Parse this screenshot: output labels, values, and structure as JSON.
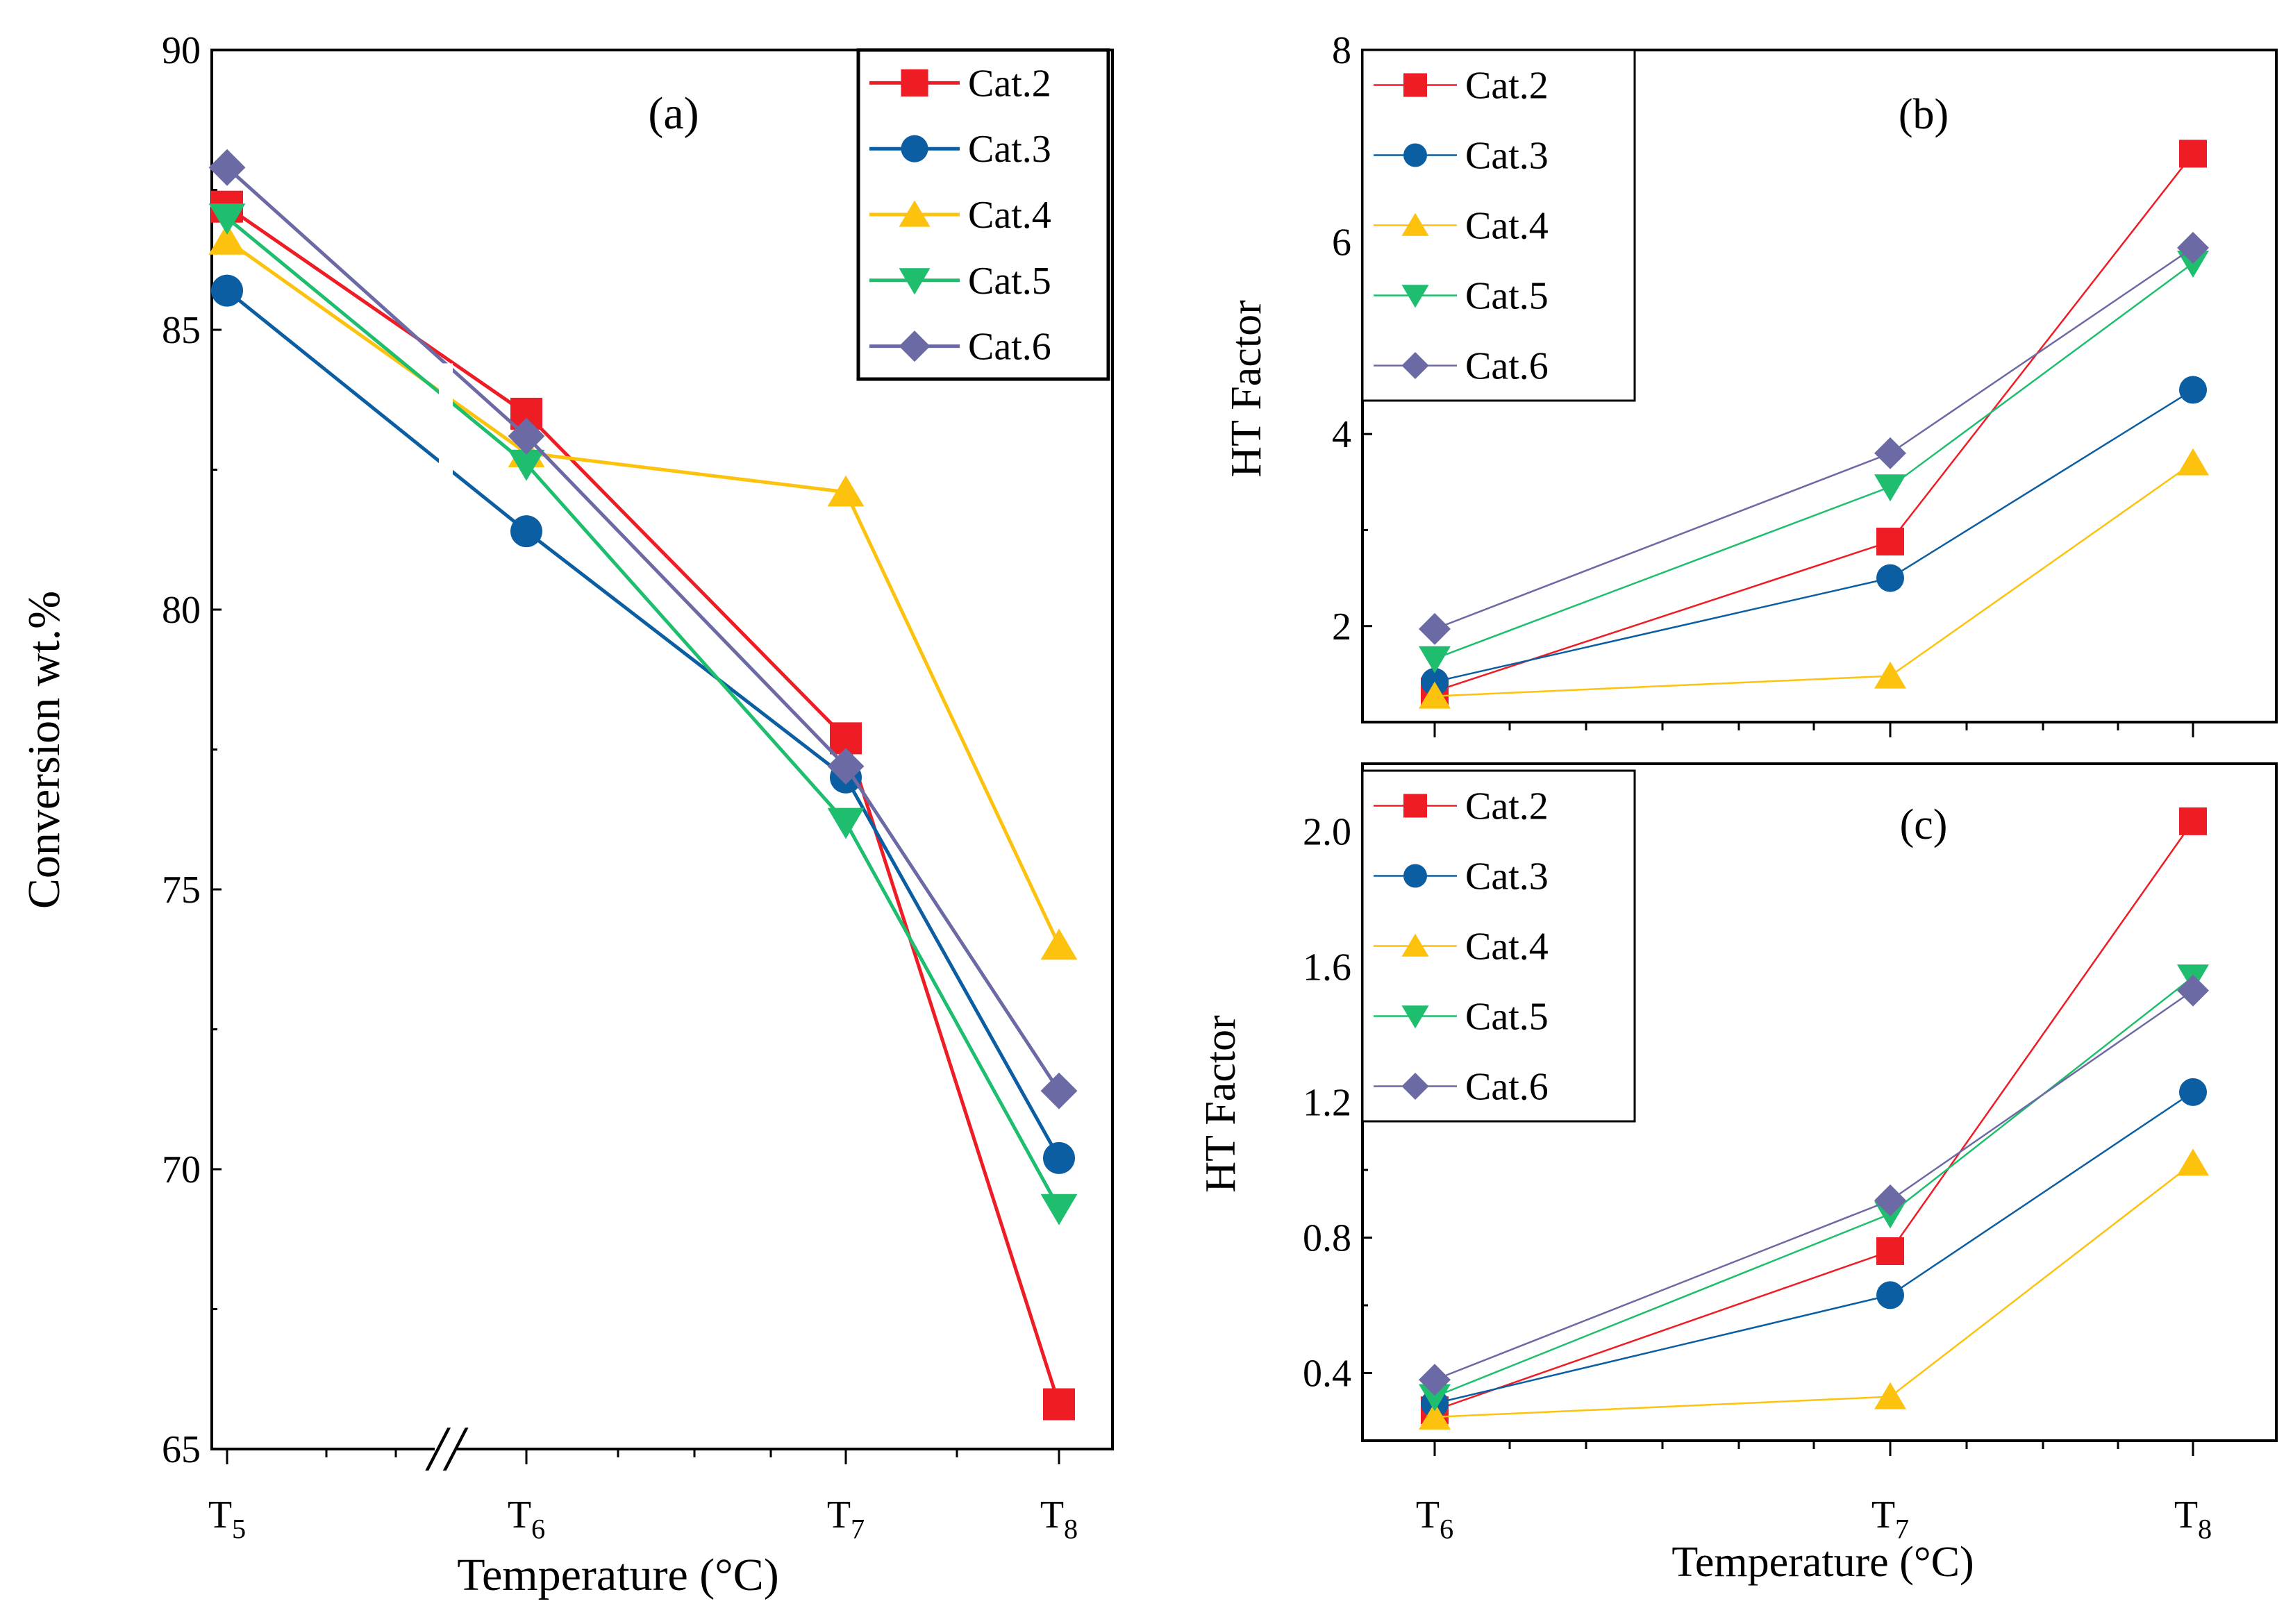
{
  "chart_data": [
    {
      "type": "line",
      "panel_label": "(a)",
      "xlabel": "Temperature (°C)",
      "ylabel": "Conversion wt.%",
      "categories": [
        {
          "main": "T",
          "sub": "5"
        },
        {
          "main": "T",
          "sub": "6"
        },
        {
          "main": "T",
          "sub": "7"
        },
        {
          "main": "T",
          "sub": "8"
        }
      ],
      "ylim": [
        65,
        90
      ],
      "yticks": [
        65,
        70,
        75,
        80,
        85,
        90
      ],
      "axis_break": "//",
      "legend_position": "top-right",
      "series": [
        {
          "name": "Cat.2",
          "marker": "square",
          "color": "#ee1c25",
          "values": [
            87.2,
            83.5,
            77.7,
            65.8
          ]
        },
        {
          "name": "Cat.3",
          "marker": "circle",
          "color": "#0b5ea1",
          "values": [
            85.7,
            81.4,
            77.0,
            70.2
          ]
        },
        {
          "name": "Cat.4",
          "marker": "triangle-up",
          "color": "#fcc20e",
          "values": [
            86.6,
            82.8,
            82.1,
            74.0
          ]
        },
        {
          "name": "Cat.5",
          "marker": "triangle-down",
          "color": "#1fbe6f",
          "values": [
            87.0,
            82.6,
            76.2,
            69.3
          ]
        },
        {
          "name": "Cat.6",
          "marker": "diamond",
          "color": "#6c6aa4",
          "values": [
            87.9,
            83.1,
            77.2,
            71.4
          ]
        }
      ]
    },
    {
      "type": "line",
      "panel_label": "(b)",
      "xlabel": "",
      "ylabel": "HT Factor",
      "categories": [
        {
          "main": "T",
          "sub": "6"
        },
        {
          "main": "T",
          "sub": "7"
        },
        {
          "main": "T",
          "sub": "8"
        }
      ],
      "ylim": [
        1.0,
        8.0
      ],
      "yticks": [
        2,
        4,
        6,
        8
      ],
      "legend_position": "top-left",
      "series": [
        {
          "name": "Cat.2",
          "marker": "square",
          "color": "#ee1c25",
          "values": [
            1.32,
            2.88,
            6.92
          ]
        },
        {
          "name": "Cat.3",
          "marker": "circle",
          "color": "#0b5ea1",
          "values": [
            1.42,
            2.5,
            4.46
          ]
        },
        {
          "name": "Cat.4",
          "marker": "triangle-up",
          "color": "#fcc20e",
          "values": [
            1.27,
            1.48,
            3.7
          ]
        },
        {
          "name": "Cat.5",
          "marker": "triangle-down",
          "color": "#1fbe6f",
          "values": [
            1.66,
            3.45,
            5.78
          ]
        },
        {
          "name": "Cat.6",
          "marker": "diamond",
          "color": "#6c6aa4",
          "values": [
            1.97,
            3.8,
            5.94
          ]
        }
      ]
    },
    {
      "type": "line",
      "panel_label": "(c)",
      "xlabel": "Temperature (°C)",
      "ylabel": "HT Factor",
      "categories": [
        {
          "main": "T",
          "sub": "6"
        },
        {
          "main": "T",
          "sub": "7"
        },
        {
          "main": "T",
          "sub": "8"
        }
      ],
      "ylim": [
        0.2,
        2.2
      ],
      "yticks": [
        "0.4",
        "0.8",
        "1.2",
        "1.6",
        "2.0"
      ],
      "legend_position": "top-left",
      "series": [
        {
          "name": "Cat.2",
          "marker": "square",
          "color": "#ee1c25",
          "values": [
            0.29,
            0.76,
            2.03
          ]
        },
        {
          "name": "Cat.3",
          "marker": "circle",
          "color": "#0b5ea1",
          "values": [
            0.31,
            0.63,
            1.23
          ]
        },
        {
          "name": "Cat.4",
          "marker": "triangle-up",
          "color": "#fcc20e",
          "values": [
            0.27,
            0.33,
            1.02
          ]
        },
        {
          "name": "Cat.5",
          "marker": "triangle-down",
          "color": "#1fbe6f",
          "values": [
            0.33,
            0.87,
            1.57
          ]
        },
        {
          "name": "Cat.6",
          "marker": "diamond",
          "color": "#6c6aa4",
          "values": [
            0.38,
            0.91,
            1.53
          ]
        }
      ]
    }
  ]
}
